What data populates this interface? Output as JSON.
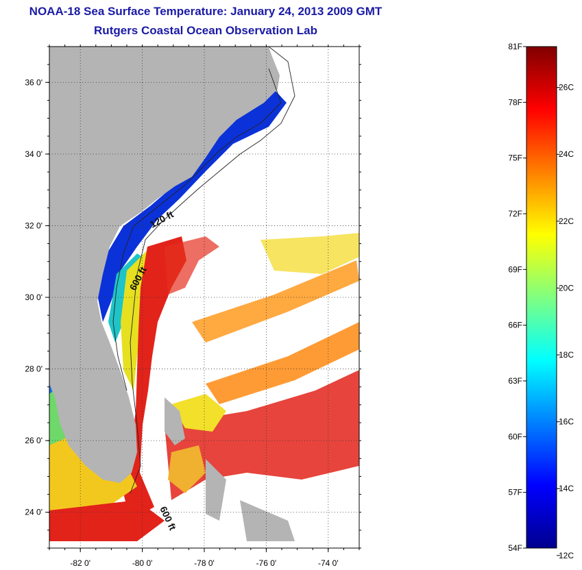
{
  "title": "NOAA-18 Sea Surface Temperature:  January 24, 2013 2009 GMT",
  "subtitle": "Rutgers Coastal Ocean Observation Lab",
  "map": {
    "lon_labels": [
      "-82 0'",
      "-80 0'",
      "-78 0'",
      "-76 0'",
      "-74 0'"
    ],
    "lat_labels": [
      "36 0'",
      "34 0'",
      "32 0'",
      "30 0'",
      "28 0'",
      "26 0'",
      "24 0'"
    ],
    "lon_values": [
      -82,
      -80,
      -78,
      -76,
      -74
    ],
    "lat_values": [
      36,
      34,
      32,
      30,
      28,
      26,
      24
    ],
    "lon_range": [
      -83,
      -73
    ],
    "lat_range": [
      23,
      37
    ],
    "grid": true,
    "land_color": "#b4b4b4",
    "isobath_labels": [
      "120 ft",
      "600 ft",
      "600 ft"
    ]
  },
  "colorbar": {
    "f_labels": [
      "81F",
      "78F",
      "75F",
      "72F",
      "69F",
      "66F",
      "63F",
      "60F",
      "57F",
      "54F"
    ],
    "c_labels": [
      "26C",
      "24C",
      "22C",
      "20C",
      "18C",
      "16C",
      "14C",
      "12C"
    ],
    "f_values": [
      81,
      78,
      75,
      72,
      69,
      66,
      63,
      60,
      57,
      54
    ],
    "c_values": [
      26,
      24,
      22,
      20,
      18,
      16,
      14,
      12
    ],
    "range_f": [
      54,
      81
    ],
    "colormap": [
      "#00008f",
      "#0000ff",
      "#0080ff",
      "#00ffff",
      "#80ff80",
      "#ffff00",
      "#ff8000",
      "#ff0000",
      "#800000"
    ]
  }
}
